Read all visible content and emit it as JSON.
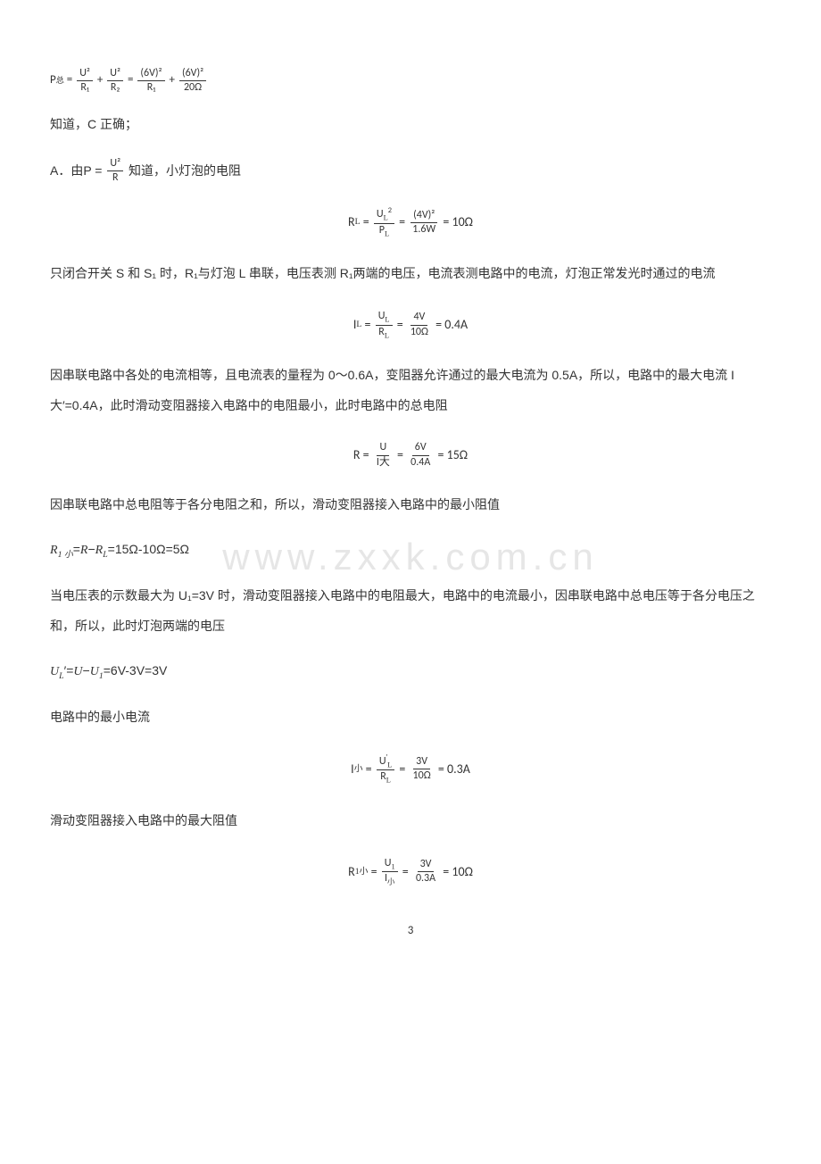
{
  "watermark": "www.zxxk.com.cn",
  "line1_prefix": "P",
  "line1_sub_total": "总",
  "formula1": {
    "f1_num": "U²",
    "f1_den_r1": "R₁",
    "f2_num": "U²",
    "f2_den_r2": "R₂",
    "f3_num": "(6V)²",
    "f3_den": "R₁",
    "f4_num": "(6V)²",
    "f4_den": "20Ω"
  },
  "line2": "知道，C 正确；",
  "line3_pre": "A．由P = ",
  "line3_frac_num": "U²",
  "line3_frac_den": "R",
  "line3_post": "知道，小灯泡的电阻",
  "formula_RL": {
    "lhs": "R",
    "lhs_sub": "L",
    "f1_num": "U",
    "f1_num_sub": "L",
    "f1_num_sup": "2",
    "f1_den": "P",
    "f1_den_sub": "L",
    "f2_num": "(4V)²",
    "f2_den": "1.6W",
    "result": "10Ω"
  },
  "para4": "只闭合开关 S 和 S₁ 时，R₁与灯泡 L 串联，电压表测 R₁两端的电压，电流表测电路中的电流，灯泡正常发光时通过的电流",
  "formula_IL": {
    "lhs": "I",
    "lhs_sub": "L",
    "f1_num": "U",
    "f1_num_sub": "L",
    "f1_den": "R",
    "f1_den_sub": "L",
    "f2_num": "4V",
    "f2_den": "10Ω",
    "result": "0.4A"
  },
  "para5": "因串联电路中各处的电流相等，且电流表的量程为 0～0.6A，变阻器允许通过的最大电流为 0.5A，所以，电路中的最大电流 I 大′=0.4A，此时滑动变阻器接入电路中的电阻最小，此时电路中的总电阻",
  "formula_R": {
    "lhs": "R",
    "f1_num": "U",
    "f1_den": "I大",
    "f2_num": "6V",
    "f2_den": "0.4A",
    "result": "15Ω"
  },
  "para6": "因串联电路中总电阻等于各分电阻之和，所以，滑动变阻器接入电路中的最小阻值",
  "para7": "R₁ 小=R−Rₗ=15Ω-10Ω=5Ω",
  "para8": "当电压表的示数最大为 U₁=3V 时，滑动变阻器接入电路中的电阻最大，电路中的电流最小，因串联电路中总电压等于各分电压之和，所以，此时灯泡两端的电压",
  "para9": "Uₗ′=U−U₁=6V-3V=3V",
  "para10": "电路中的最小电流",
  "formula_Ismall": {
    "lhs": "I",
    "lhs_sub": "小",
    "f1_num": "U",
    "f1_num_sup": "′",
    "f1_num_sub": "L",
    "f1_den": "R",
    "f1_den_sub": "L",
    "f2_num": "3V",
    "f2_den": "10Ω",
    "result": "0.3A"
  },
  "para11": "滑动变阻器接入电路中的最大阻值",
  "formula_R1small": {
    "lhs": "R",
    "lhs_sub": "1小",
    "f1_num": "U",
    "f1_num_sub": "1",
    "f1_den": "I",
    "f1_den_sub": "小",
    "f2_num": "3V",
    "f2_den": "0.3A",
    "result": "10Ω"
  },
  "page_number": "3"
}
